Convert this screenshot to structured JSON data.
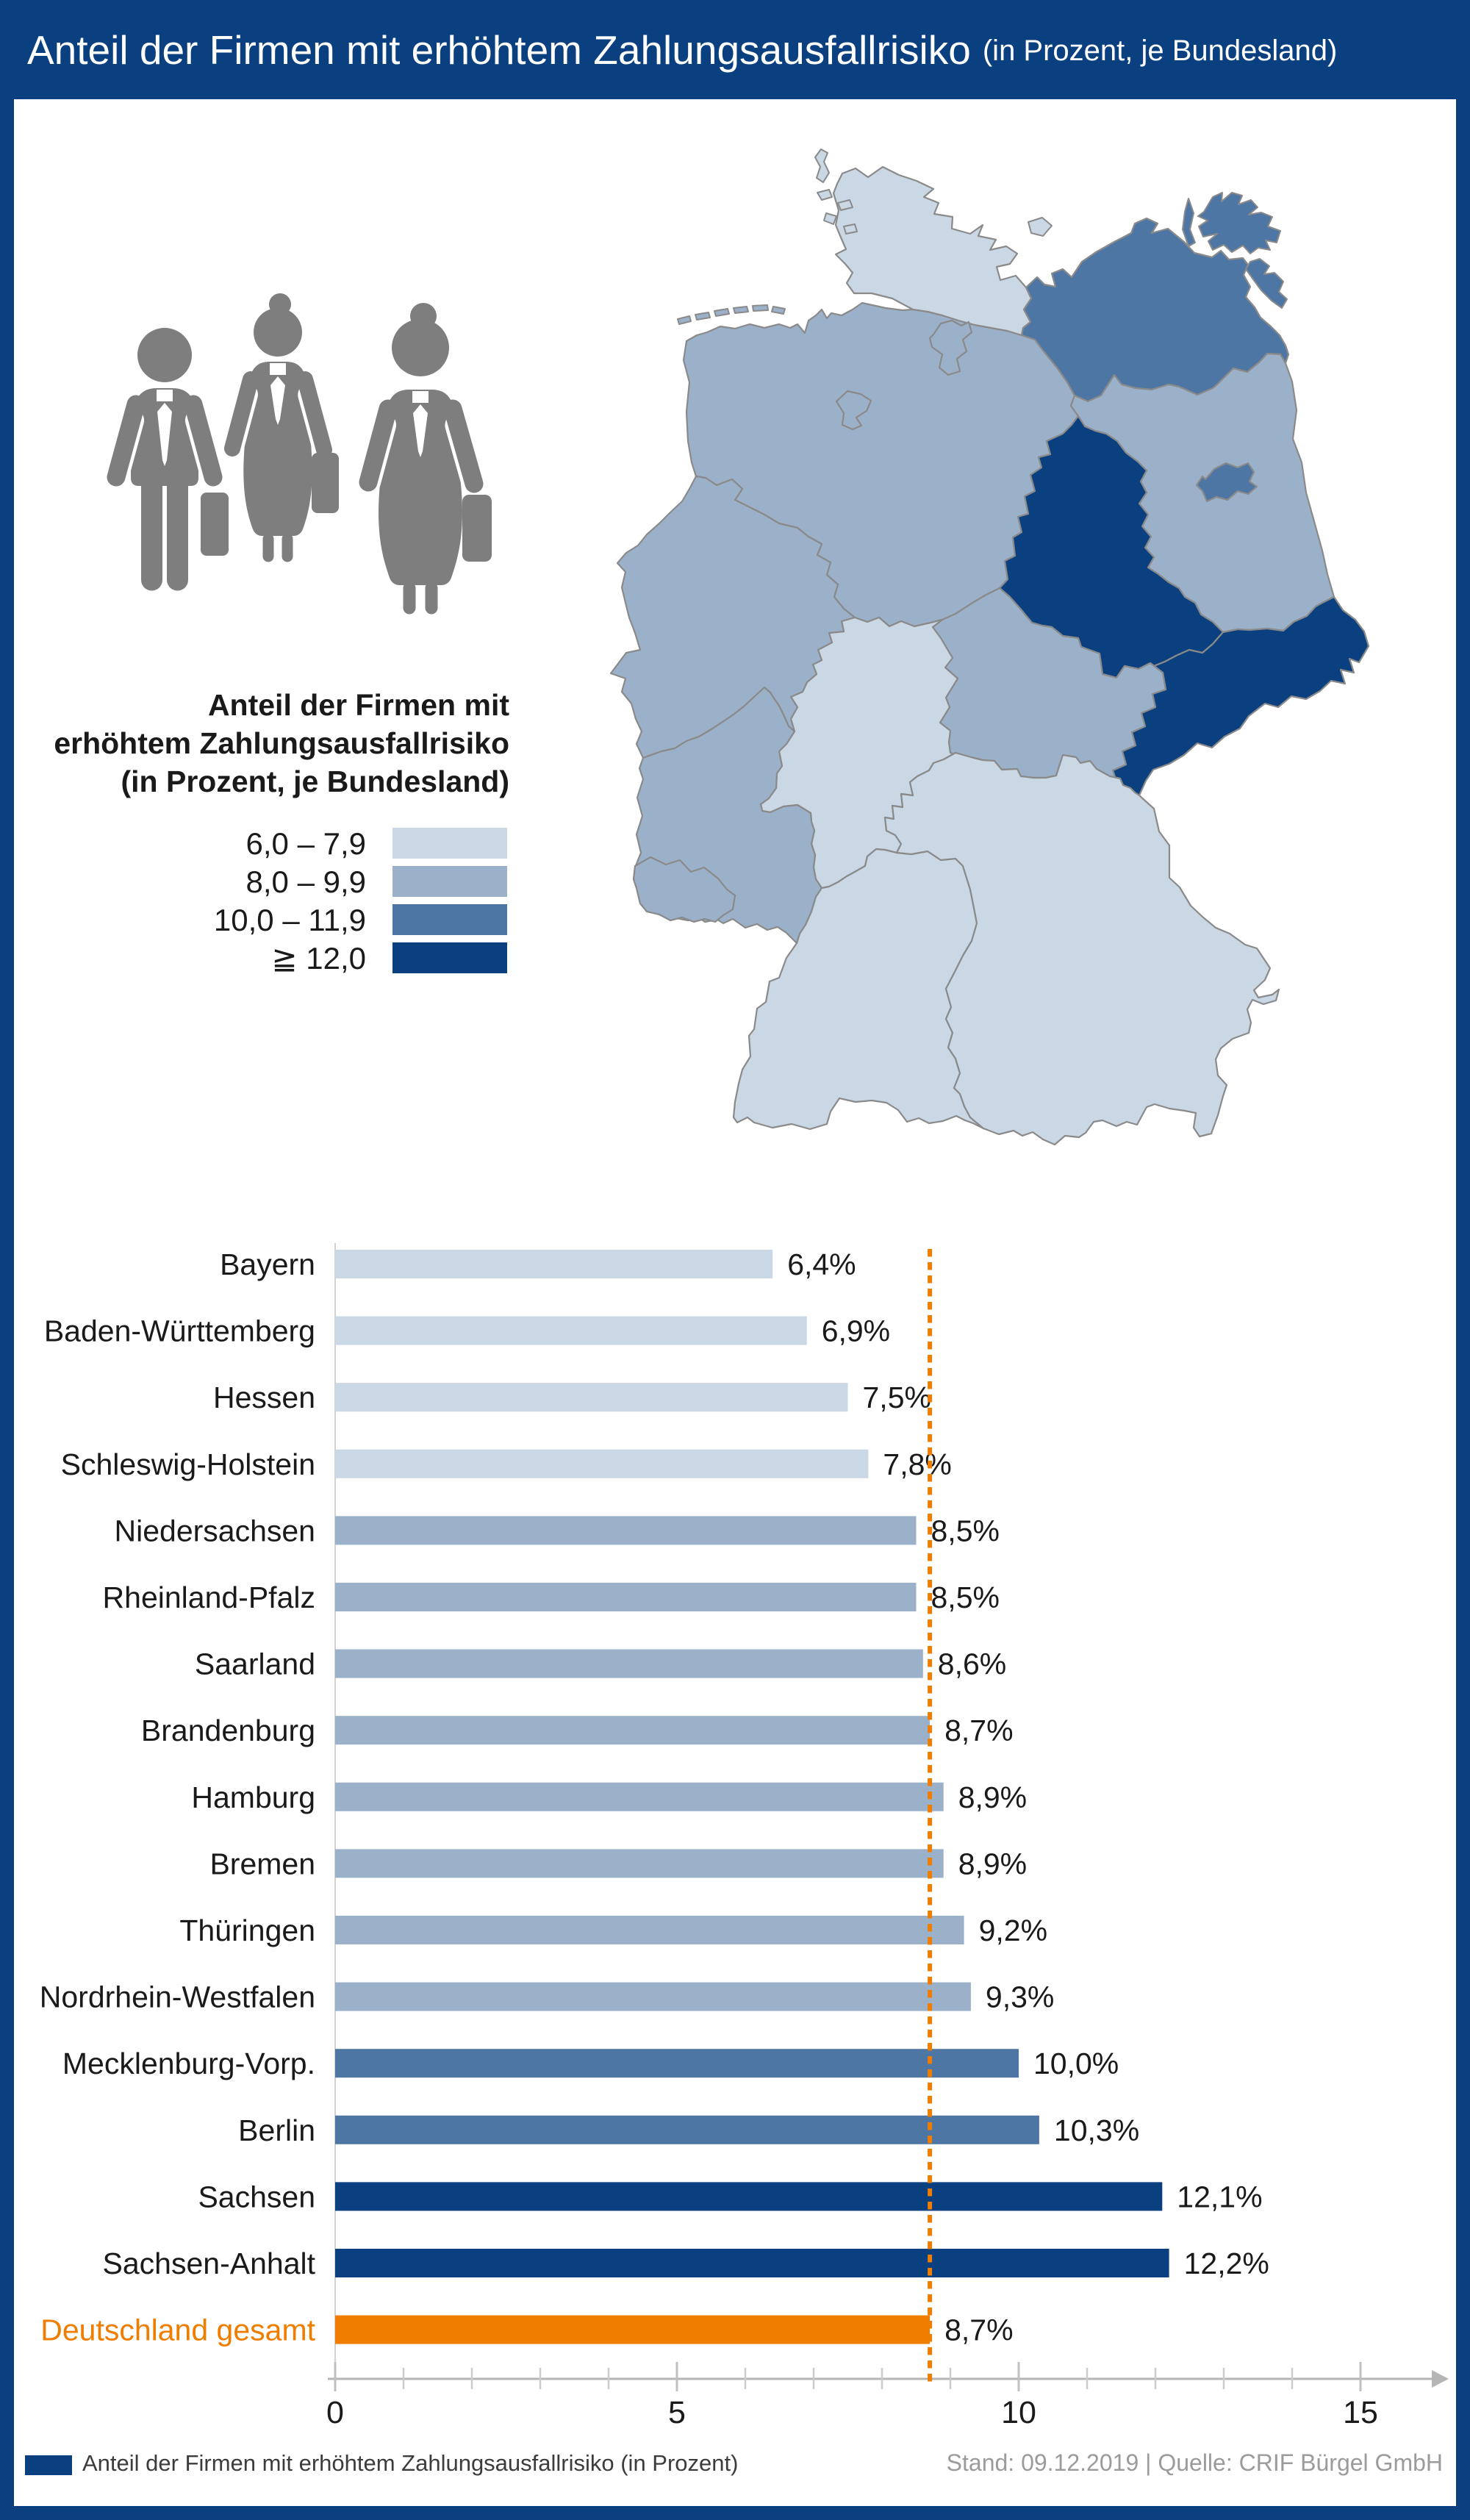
{
  "title": {
    "main": "Anteil der Firmen mit erhöhtem Zahlungsausfallrisiko",
    "sub": "(in Prozent, je Bundesland)"
  },
  "legend": {
    "title_lines": [
      "Anteil der Firmen mit",
      "erhöhtem Zahlungsausfallrisiko",
      "(in Prozent, je Bundesland)"
    ],
    "categories": [
      {
        "label": "6,0 – 7,9",
        "min": 6.0,
        "max": 7.9,
        "color": "#cad7e4"
      },
      {
        "label": "8,0 – 9,9",
        "min": 8.0,
        "max": 9.9,
        "color": "#9bb1ca"
      },
      {
        "label": "10,0 – 11,9",
        "min": 10.0,
        "max": 11.9,
        "color": "#4d76a4"
      },
      {
        "label": "≧ 12,0",
        "min": 12.0,
        "max": null,
        "color": "#0a3f80"
      }
    ]
  },
  "chart_data": {
    "type": "bar",
    "orientation": "horizontal",
    "categories": [
      "Bayern",
      "Baden-Württemberg",
      "Hessen",
      "Schleswig-Holstein",
      "Niedersachsen",
      "Rheinland-Pfalz",
      "Saarland",
      "Brandenburg",
      "Hamburg",
      "Bremen",
      "Thüringen",
      "Nordrhein-Westfalen",
      "Mecklenburg-Vorp.",
      "Berlin",
      "Sachsen",
      "Sachsen-Anhalt",
      "Deutschland gesamt"
    ],
    "values": [
      6.4,
      6.9,
      7.5,
      7.8,
      8.5,
      8.5,
      8.6,
      8.7,
      8.9,
      8.9,
      9.2,
      9.3,
      10.0,
      10.3,
      12.1,
      12.2,
      8.7
    ],
    "value_labels": [
      "6,4%",
      "6,9%",
      "7,5%",
      "7,8%",
      "8,5%",
      "8,5%",
      "8,6%",
      "8,7%",
      "8,9%",
      "8,9%",
      "9,2%",
      "9,3%",
      "10,0%",
      "10,3%",
      "12,1%",
      "12,2%",
      "8,7%"
    ],
    "highlight_category": "Deutschland gesamt",
    "highlight_color": "#ee7d00",
    "reference_line": 8.7,
    "xlim": [
      0,
      15
    ],
    "x_ticks": [
      0,
      5,
      10,
      15
    ],
    "x_minor_step": 1,
    "grid": false,
    "legend_position": "none"
  },
  "map": {
    "values": {
      "Schleswig-Holstein": 7.8,
      "Mecklenburg-Vorpommern": 10.0,
      "Hamburg": 8.9,
      "Bremen": 8.9,
      "Niedersachsen": 8.5,
      "Brandenburg": 8.7,
      "Berlin": 10.3,
      "Sachsen-Anhalt": 12.2,
      "Sachsen": 12.1,
      "Thüringen": 9.2,
      "Hessen": 7.5,
      "Nordrhein-Westfalen": 9.3,
      "Rheinland-Pfalz": 8.5,
      "Saarland": 8.6,
      "Baden-Württemberg": 6.9,
      "Bayern": 6.4
    }
  },
  "footer": {
    "legend_label": "Anteil der Firmen mit erhöhtem Zahlungsausfallrisiko (in Prozent)",
    "source": "Stand: 09.12.2019 | Quelle: CRIF Bürgel GmbH"
  },
  "colors": {
    "navy": "#0a3f80",
    "steel": "#4d76a4",
    "medium": "#9bb1ca",
    "light": "#cad7e4",
    "orange": "#ee7d00",
    "icon_gray": "#7e7e7e",
    "map_border": "#8a8a8a",
    "axis_gray": "#b5b5b5",
    "text_dark": "#1a1a1a",
    "source_gray": "#9b9b9b"
  }
}
